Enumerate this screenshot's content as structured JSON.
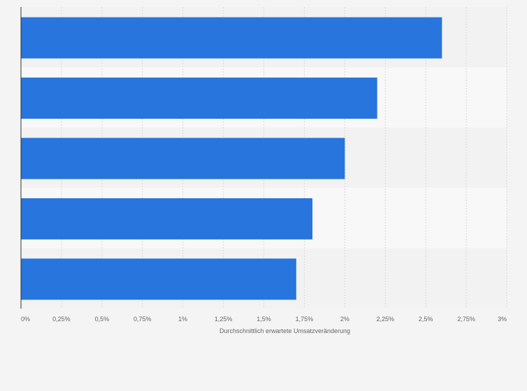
{
  "chart_data": {
    "type": "bar",
    "orientation": "horizontal",
    "categories": [
      "",
      "",
      "",
      "",
      ""
    ],
    "values": [
      2.6,
      2.2,
      2.0,
      1.8,
      1.7
    ],
    "xlabel": "Durchschnittlich erwartete Umsatzveränderung",
    "ylabel": "",
    "xlim": [
      0,
      3
    ],
    "x_ticks": [
      0,
      0.25,
      0.5,
      0.75,
      1,
      1.25,
      1.5,
      1.75,
      2,
      2.25,
      2.5,
      2.75,
      3
    ],
    "x_tick_labels": [
      "0%",
      "0,25%",
      "0,5%",
      "0,75%",
      "1%",
      "1,25%",
      "1,5%",
      "1,75%",
      "2%",
      "2,25%",
      "2,5%",
      "2,75%",
      "3%"
    ],
    "grid": true,
    "colors": {
      "bar": "#2775dd",
      "band_even": "#f2f2f2",
      "band_odd": "#f8f8f8",
      "grid": "#d9d9d9",
      "axis": "#333333",
      "background": "#f4f4f4"
    }
  }
}
